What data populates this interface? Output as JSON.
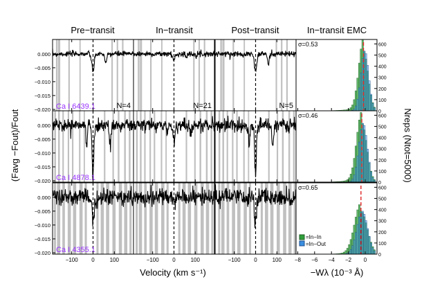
{
  "colors": {
    "shade": "#c0c0c0",
    "line": "#000000",
    "line_label": "#9933ff",
    "hist_inin": "#2e9e3a",
    "hist_inout": "#3b8fe0",
    "median_line": "#e02020"
  },
  "chart_data": {
    "type": "line",
    "column_titles": [
      "Pre−transit",
      "In−transit",
      "Post−transit",
      "In−transit EMC"
    ],
    "xlabel_left": "Velocity (km s⁻¹)",
    "xlabel_right": "−Wλ (10⁻³ Å)",
    "ylabel_left": "(Favg −Fout)/Fout",
    "ylabel_right": "Nreps (Ntot=5000)",
    "velocity_xlim": [
      -190,
      190
    ],
    "velocity_xticks": [
      -100,
      0,
      100
    ],
    "ew_xlim": [
      -8.2,
      1.4
    ],
    "ew_xticks": [
      -8,
      -6,
      -4,
      -2,
      0
    ],
    "count_yticks": [
      0,
      100,
      200,
      300,
      400,
      500,
      600
    ],
    "count_ylim": [
      0,
      640
    ],
    "rows": [
      {
        "line": "Ca I 6439.1",
        "ylim": [
          -0.0205,
          0.0052
        ],
        "yticks": [
          "0.000",
          "−0.005",
          "−0.010",
          "−0.015",
          "−0.020"
        ],
        "ytick_values": [
          0,
          -0.005,
          -0.01,
          -0.015,
          -0.02
        ],
        "noise": 0.0009,
        "n_labels": [
          "N=4",
          "N=21",
          "N=5"
        ],
        "sigma": "σ=0.53",
        "hist_peak": 600,
        "hist_center": -0.2,
        "hist_width": 0.55,
        "shaded_bands": [
          [
            -160,
            -150
          ],
          [
            -112,
            -105
          ],
          [
            -60,
            -54
          ],
          [
            90,
            97
          ],
          [
            115,
            122
          ],
          [
            -170,
            -162
          ],
          [
            140,
            147
          ]
        ],
        "dips": [
          [
            0,
            -0.006,
            6
          ],
          [
            60,
            -0.004,
            4
          ]
        ]
      },
      {
        "line": "Ca I 4878.1",
        "ylim": [
          -0.0205,
          0.0052
        ],
        "yticks": [
          "0.000",
          "−0.005",
          "−0.010",
          "−0.015",
          "−0.020"
        ],
        "ytick_values": [
          0,
          -0.005,
          -0.01,
          -0.015,
          -0.02
        ],
        "noise": 0.0022,
        "n_labels": [
          "",
          "",
          ""
        ],
        "sigma": "σ=0.46",
        "hist_peak": 590,
        "hist_center": -0.4,
        "hist_width": 0.6,
        "shaded_bands": [
          [
            -178,
            -170
          ],
          [
            -160,
            -152
          ],
          [
            -140,
            -133
          ],
          [
            -115,
            -108
          ],
          [
            -95,
            -88
          ],
          [
            -62,
            -55
          ],
          [
            -40,
            -34
          ],
          [
            55,
            62
          ],
          [
            95,
            102
          ],
          [
            120,
            128
          ],
          [
            150,
            158
          ],
          [
            172,
            180
          ]
        ],
        "dips": [
          [
            0,
            -0.018,
            4
          ],
          [
            -30,
            -0.008,
            3
          ],
          [
            80,
            -0.007,
            4
          ]
        ]
      },
      {
        "line": "Ca I 4355.1",
        "ylim": [
          -0.0205,
          0.0052
        ],
        "yticks": [
          "0.000",
          "−0.005",
          "−0.010",
          "−0.015",
          "−0.020"
        ],
        "ytick_values": [
          0,
          -0.005,
          -0.01,
          -0.015,
          -0.02
        ],
        "noise": 0.0028,
        "n_labels": [
          "",
          "",
          ""
        ],
        "sigma": "σ=0.65",
        "hist_peak": 430,
        "hist_center": -0.5,
        "hist_width": 0.75,
        "shaded_bands": [
          [
            -180,
            -170
          ],
          [
            -165,
            -150
          ],
          [
            -140,
            -128
          ],
          [
            -115,
            -100
          ],
          [
            -90,
            -75
          ],
          [
            -60,
            -45
          ],
          [
            -35,
            -25
          ],
          [
            20,
            30
          ],
          [
            40,
            55
          ],
          [
            65,
            80
          ],
          [
            95,
            110
          ],
          [
            125,
            140
          ],
          [
            150,
            165
          ],
          [
            175,
            185
          ]
        ],
        "dips": [
          [
            0,
            -0.008,
            5
          ]
        ]
      }
    ],
    "legend": [
      "=In−In",
      "=In−Out"
    ]
  }
}
